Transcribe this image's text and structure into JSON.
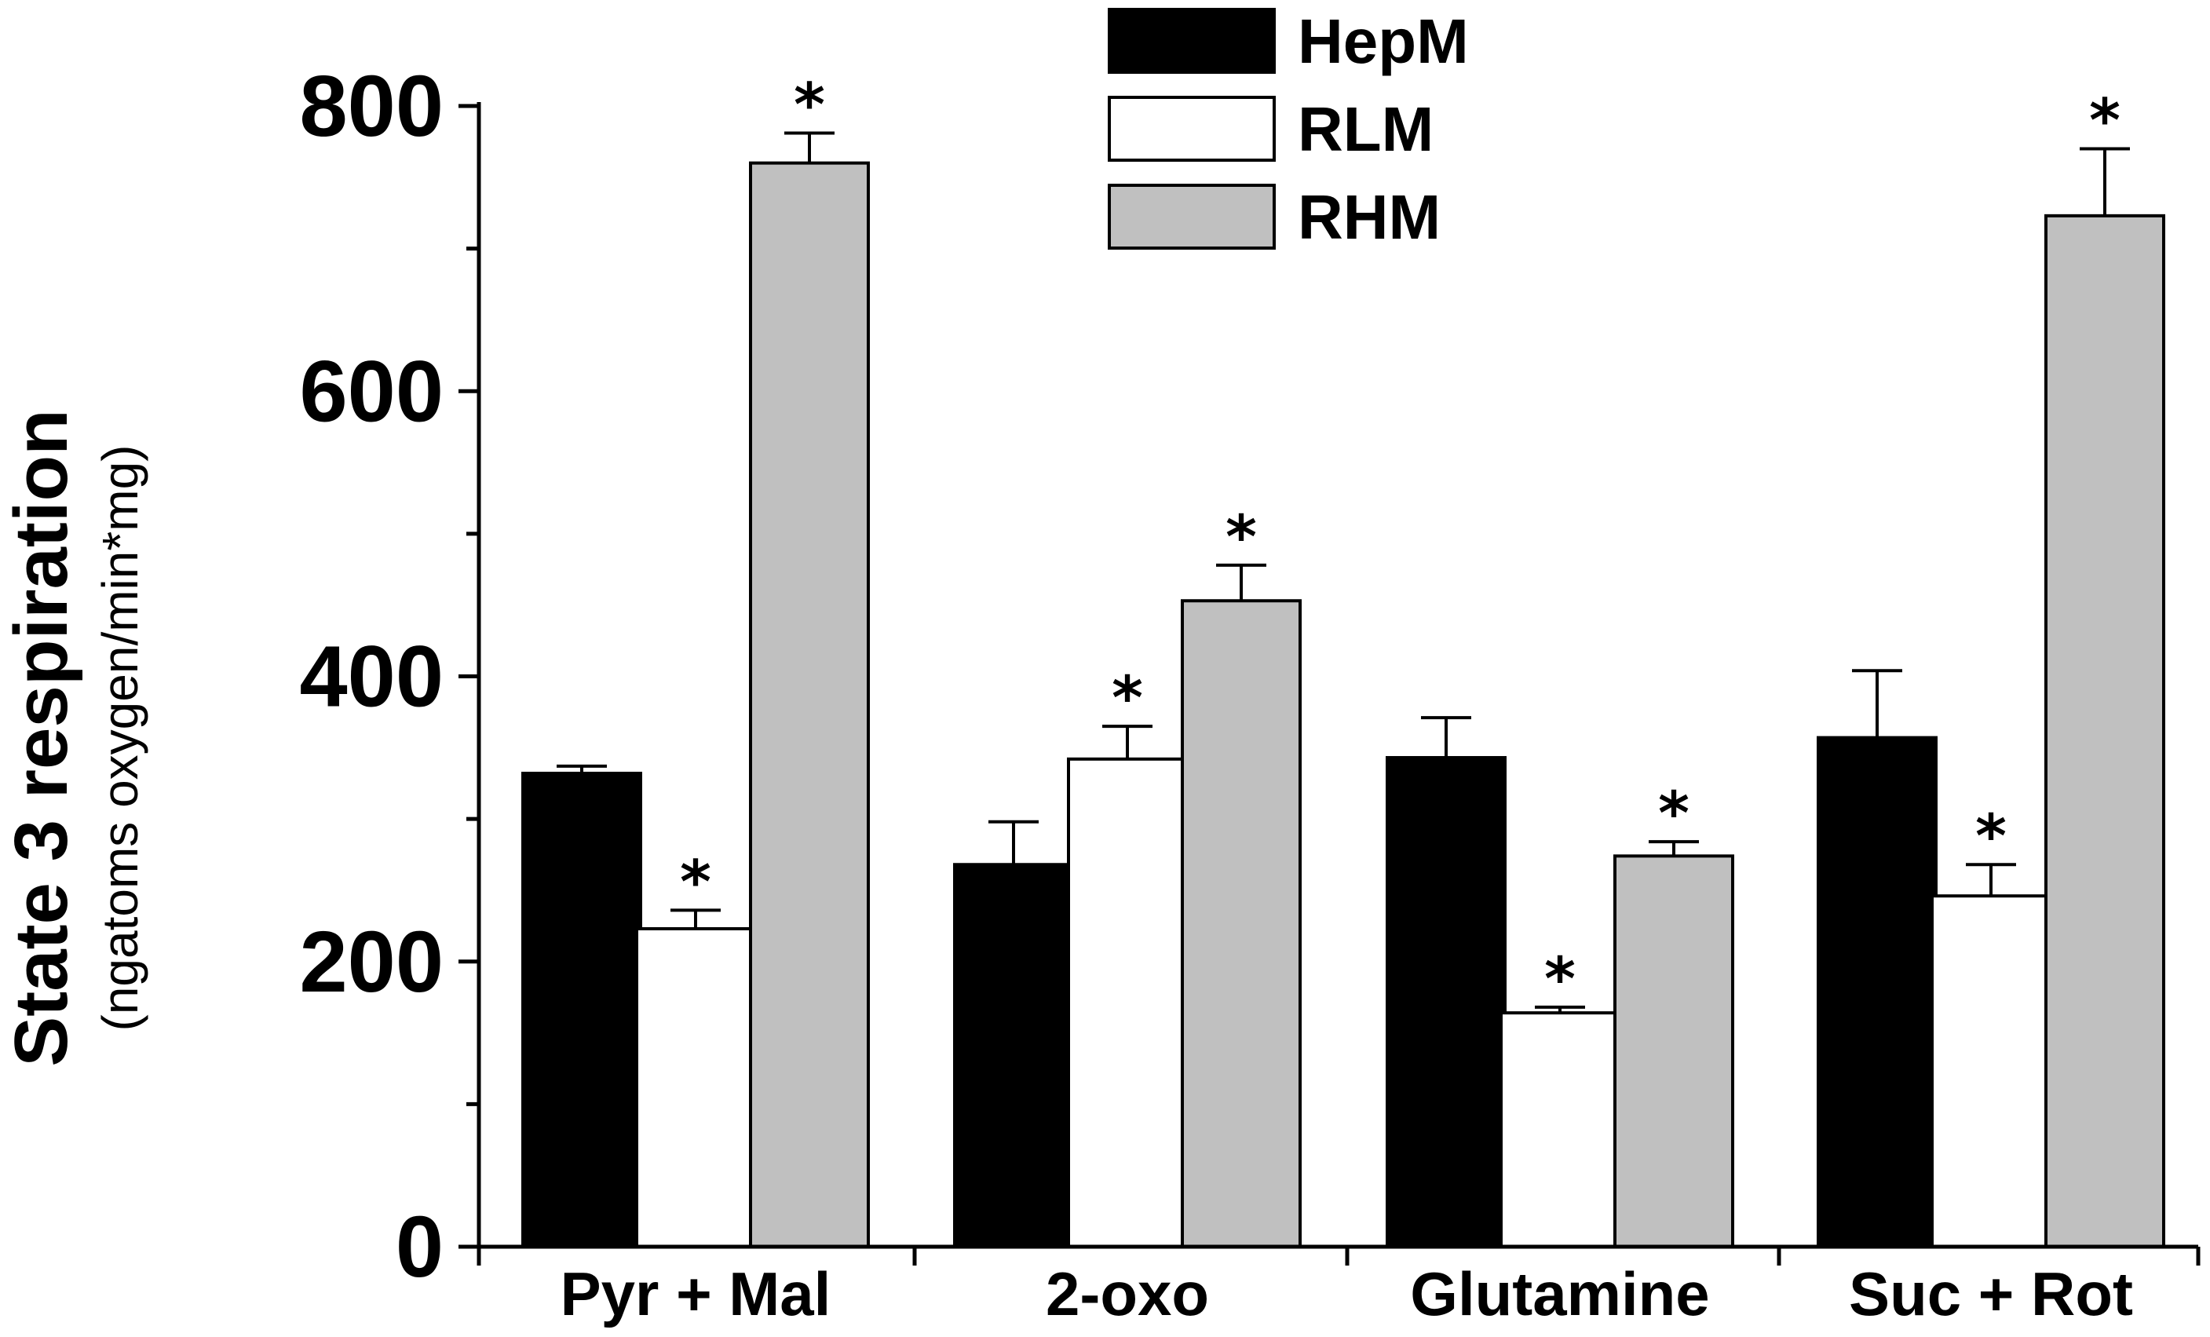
{
  "chart_data": {
    "type": "bar",
    "title": "",
    "xlabel": "",
    "ylabel": "State 3 respiration",
    "ylabel_units": "(ngatoms oxygen/min*mg)",
    "ylim": [
      0,
      800
    ],
    "yticks": [
      0,
      200,
      400,
      600,
      800
    ],
    "categories": [
      "Pyr + Mal",
      "2-oxo",
      "Glutamine",
      "Suc + Rot"
    ],
    "series": [
      {
        "name": "HepM",
        "color": "#000000",
        "values": [
          332,
          268,
          343,
          357
        ],
        "errors": [
          5,
          30,
          28,
          47
        ],
        "significant": [
          false,
          false,
          false,
          false
        ]
      },
      {
        "name": "RLM",
        "color": "#ffffff",
        "values": [
          223,
          342,
          164,
          246
        ],
        "errors": [
          13,
          23,
          4,
          22
        ],
        "significant": [
          true,
          true,
          true,
          true
        ]
      },
      {
        "name": "RHM",
        "color": "#c0c0c0",
        "values": [
          760,
          453,
          274,
          723
        ],
        "errors": [
          21,
          25,
          10,
          47
        ],
        "significant": [
          true,
          true,
          true,
          true
        ]
      }
    ],
    "significance_marker": "*",
    "legend_position": "top-center",
    "grid": false
  }
}
